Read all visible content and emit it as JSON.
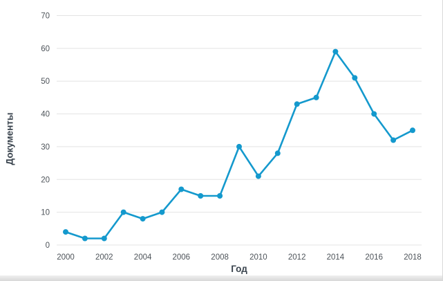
{
  "chart_data": {
    "type": "line",
    "title": "",
    "xlabel": "Год",
    "ylabel": "Документы",
    "x": [
      2000,
      2001,
      2002,
      2003,
      2004,
      2005,
      2006,
      2007,
      2008,
      2009,
      2010,
      2011,
      2012,
      2013,
      2014,
      2015,
      2016,
      2017,
      2018
    ],
    "series": [
      {
        "name": "Документы",
        "values": [
          4,
          2,
          2,
          10,
          8,
          10,
          17,
          15,
          15,
          30,
          21,
          28,
          43,
          45,
          59,
          51,
          40,
          32,
          35
        ]
      }
    ],
    "ylim": [
      0,
      70
    ],
    "ytick_step": 10,
    "xtick_step": 2,
    "grid": "horizontal-only",
    "legend": "none",
    "colors": {
      "line": "#1499cd",
      "marker": "#1499cd",
      "grid": "#e3e3e3",
      "tick_label": "#4d5359",
      "axis_title": "#39434d",
      "background": "#ffffff"
    }
  }
}
